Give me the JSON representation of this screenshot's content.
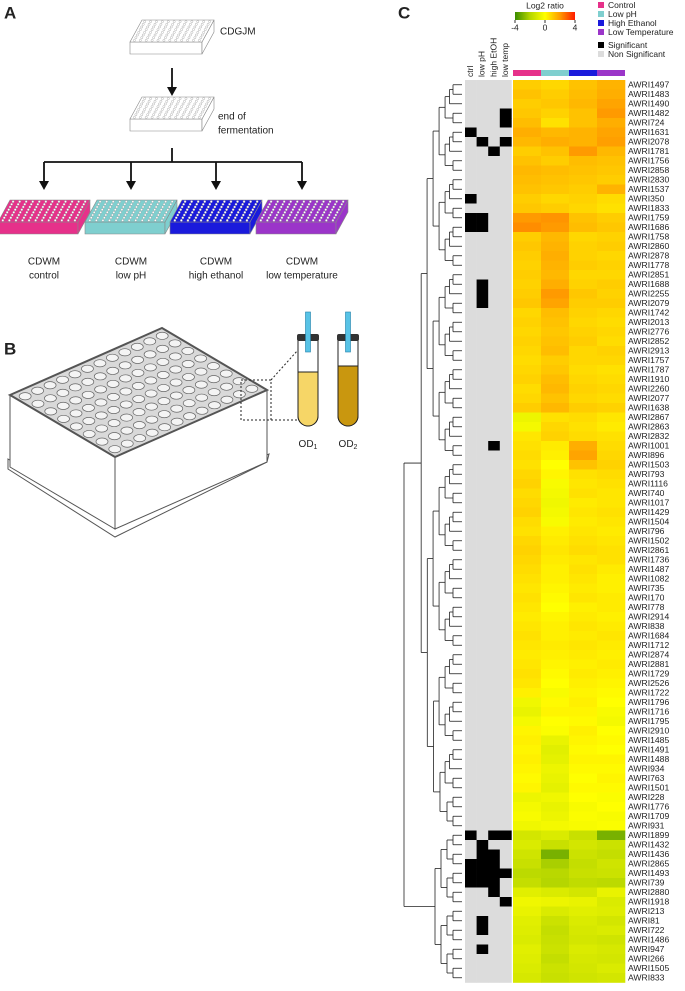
{
  "panels": {
    "a": "A",
    "b": "B",
    "c": "C"
  },
  "panel_a": {
    "start_medium": "CDGJM",
    "stage": [
      "end of",
      "fermentation"
    ],
    "conditions": [
      {
        "medium": "CDWM",
        "name": "control"
      },
      {
        "medium": "CDWM",
        "name": "low pH"
      },
      {
        "medium": "CDWM",
        "name": "high ethanol"
      },
      {
        "medium": "CDWM",
        "name": "low temperature"
      }
    ]
  },
  "panel_b": {
    "od_labels": [
      {
        "base": "OD",
        "sub": "1"
      },
      {
        "base": "OD",
        "sub": "2"
      }
    ]
  },
  "chart_data": {
    "type": "heatmap",
    "colorbar_title": "Log2 ratio",
    "colorbar_range": [
      -4,
      4
    ],
    "colorbar_ticks": [
      -4,
      0,
      4
    ],
    "colormap": [
      "#3a8c00",
      "#b5d600",
      "#ffff00",
      "#ff9a00",
      "#ff1a00"
    ],
    "treatments": [
      {
        "name": "Control",
        "color": "#e6318a"
      },
      {
        "name": "Low pH",
        "color": "#7fcfcf"
      },
      {
        "name": "High Ethanol",
        "color": "#1a1adc"
      },
      {
        "name": "Low Temperature",
        "color": "#9b35c9"
      }
    ],
    "significance_legend": [
      {
        "name": "Significant",
        "color": "#000000"
      },
      {
        "name": "Non Significant",
        "color": "#dcdcdc"
      }
    ],
    "significance_columns": [
      "ctrl",
      "low pH",
      "high EtOH",
      "low temp"
    ],
    "rows": [
      "AWRI1497",
      "AWRI1483",
      "AWRI1490",
      "AWRI1482",
      "AWRI724",
      "AWRI1631",
      "AWRI2078",
      "AWRI1781",
      "AWRI1756",
      "AWRI2858",
      "AWRI2830",
      "AWRI1537",
      "AWRI350",
      "AWRI1833",
      "AWRI1759",
      "AWRI1686",
      "AWRI1758",
      "AWRI2860",
      "AWRI2878",
      "AWRI1778",
      "AWRI2851",
      "AWRI1688",
      "AWRI2255",
      "AWRI2079",
      "AWRI1742",
      "AWRI2013",
      "AWRI2776",
      "AWRI2852",
      "AWRI2913",
      "AWRI1757",
      "AWRI1787",
      "AWRI1910",
      "AWRI2260",
      "AWRI2077",
      "AWRI1638",
      "AWRI2867",
      "AWRI2863",
      "AWRI2832",
      "AWRI1001",
      "AWRI896",
      "AWRI1503",
      "AWRI793",
      "AWRI1116",
      "AWRI740",
      "AWRI1017",
      "AWRI1429",
      "AWRI1504",
      "AWRI796",
      "AWRI1502",
      "AWRI2861",
      "AWRI1736",
      "AWRI1487",
      "AWRI1082",
      "AWRI735",
      "AWRI170",
      "AWRI778",
      "AWRI2914",
      "AWRI838",
      "AWRI1684",
      "AWRI1712",
      "AWRI2874",
      "AWRI2881",
      "AWRI1729",
      "AWRI2526",
      "AWRI1722",
      "AWRI1796",
      "AWRI1716",
      "AWRI1795",
      "AWRI2910",
      "AWRI1485",
      "AWRI1491",
      "AWRI1488",
      "AWRI934",
      "AWRI763",
      "AWRI1501",
      "AWRI228",
      "AWRI1776",
      "AWRI1709",
      "AWRI931",
      "AWRI1899",
      "AWRI1432",
      "AWRI1436",
      "AWRI2865",
      "AWRI1493",
      "AWRI739",
      "AWRI2880",
      "AWRI1918",
      "AWRI213",
      "AWRI81",
      "AWRI722",
      "AWRI1486",
      "AWRI947",
      "AWRI266",
      "AWRI1505",
      "AWRI833"
    ],
    "values": [
      [
        1.0,
        0.8,
        1.2,
        1.5
      ],
      [
        1.2,
        1.0,
        1.3,
        1.6
      ],
      [
        1.0,
        1.1,
        1.4,
        1.8
      ],
      [
        1.1,
        0.9,
        1.2,
        2.0
      ],
      [
        1.3,
        0.6,
        1.2,
        1.6
      ],
      [
        1.6,
        1.4,
        1.5,
        1.8
      ],
      [
        1.4,
        1.6,
        1.5,
        1.9
      ],
      [
        1.0,
        1.2,
        2.0,
        1.4
      ],
      [
        1.2,
        1.0,
        1.3,
        1.2
      ],
      [
        1.4,
        1.3,
        1.2,
        1.1
      ],
      [
        1.3,
        1.2,
        1.1,
        1.0
      ],
      [
        1.2,
        1.1,
        1.0,
        1.5
      ],
      [
        1.0,
        0.8,
        0.9,
        0.7
      ],
      [
        1.1,
        1.0,
        0.8,
        0.6
      ],
      [
        2.0,
        2.1,
        1.2,
        1.0
      ],
      [
        2.2,
        2.0,
        1.3,
        1.1
      ],
      [
        1.0,
        1.4,
        0.8,
        0.9
      ],
      [
        1.1,
        1.5,
        0.9,
        1.0
      ],
      [
        1.0,
        1.6,
        0.9,
        0.8
      ],
      [
        0.9,
        1.5,
        1.0,
        0.9
      ],
      [
        1.0,
        1.4,
        0.8,
        0.8
      ],
      [
        0.9,
        1.6,
        0.9,
        1.0
      ],
      [
        1.0,
        2.0,
        1.1,
        0.9
      ],
      [
        1.1,
        1.8,
        1.0,
        1.0
      ],
      [
        0.8,
        1.3,
        0.9,
        0.8
      ],
      [
        0.9,
        1.2,
        0.8,
        0.7
      ],
      [
        0.8,
        1.1,
        0.9,
        0.8
      ],
      [
        0.9,
        1.2,
        1.0,
        0.7
      ],
      [
        0.8,
        1.3,
        0.8,
        0.9
      ],
      [
        0.7,
        1.0,
        0.8,
        0.8
      ],
      [
        0.8,
        1.1,
        0.7,
        0.6
      ],
      [
        0.9,
        1.3,
        0.8,
        0.7
      ],
      [
        0.7,
        1.4,
        0.9,
        0.8
      ],
      [
        0.8,
        1.2,
        0.8,
        0.7
      ],
      [
        1.0,
        1.4,
        1.0,
        0.9
      ],
      [
        -0.5,
        0.6,
        0.7,
        0.5
      ],
      [
        -0.3,
        0.8,
        0.6,
        0.4
      ],
      [
        0.5,
        0.9,
        0.7,
        0.6
      ],
      [
        0.6,
        0.4,
        1.6,
        0.7
      ],
      [
        0.7,
        0.3,
        1.8,
        0.8
      ],
      [
        0.6,
        0.0,
        1.2,
        0.9
      ],
      [
        0.8,
        0.2,
        0.6,
        0.7
      ],
      [
        0.9,
        -0.2,
        0.5,
        0.6
      ],
      [
        0.7,
        -0.3,
        0.6,
        0.5
      ],
      [
        0.8,
        -0.4,
        0.4,
        0.5
      ],
      [
        0.9,
        -0.3,
        0.5,
        0.6
      ],
      [
        0.7,
        -0.2,
        0.4,
        0.5
      ],
      [
        0.6,
        0.3,
        0.5,
        0.4
      ],
      [
        0.8,
        0.4,
        0.6,
        0.5
      ],
      [
        0.9,
        0.5,
        0.7,
        0.6
      ],
      [
        0.8,
        0.4,
        0.5,
        0.6
      ],
      [
        0.7,
        0.3,
        0.6,
        0.4
      ],
      [
        0.6,
        0.3,
        0.5,
        0.3
      ],
      [
        0.5,
        0.2,
        0.4,
        0.3
      ],
      [
        0.6,
        0.1,
        0.5,
        0.4
      ],
      [
        0.5,
        0.0,
        0.3,
        0.4
      ],
      [
        0.4,
        0.2,
        0.4,
        0.3
      ],
      [
        0.5,
        0.3,
        0.5,
        0.4
      ],
      [
        0.6,
        0.3,
        0.4,
        0.5
      ],
      [
        0.5,
        0.4,
        0.5,
        0.4
      ],
      [
        0.4,
        0.3,
        0.4,
        0.3
      ],
      [
        0.5,
        0.2,
        0.3,
        0.4
      ],
      [
        0.6,
        0.1,
        0.4,
        0.3
      ],
      [
        0.5,
        0.0,
        0.3,
        0.2
      ],
      [
        0.3,
        -0.2,
        0.2,
        0.1
      ],
      [
        -0.4,
        0.1,
        0.3,
        0.0
      ],
      [
        -0.6,
        0.2,
        0.2,
        -0.2
      ],
      [
        -0.3,
        0.0,
        0.1,
        -0.3
      ],
      [
        0.2,
        -0.1,
        0.3,
        0.0
      ],
      [
        0.3,
        -0.6,
        0.2,
        0.1
      ],
      [
        0.2,
        -0.8,
        0.1,
        0.0
      ],
      [
        0.3,
        -0.7,
        0.2,
        0.2
      ],
      [
        0.2,
        -0.5,
        0.1,
        0.1
      ],
      [
        0.1,
        -0.6,
        0.0,
        0.2
      ],
      [
        0.2,
        -0.7,
        0.1,
        0.1
      ],
      [
        -0.5,
        -0.4,
        0.0,
        -0.1
      ],
      [
        -0.3,
        -0.6,
        -0.2,
        0.0
      ],
      [
        -0.2,
        -0.5,
        -0.1,
        -0.2
      ],
      [
        -0.4,
        -0.3,
        -0.2,
        -0.1
      ],
      [
        -1.2,
        -1.0,
        -1.5,
        -3.0
      ],
      [
        -1.0,
        -1.5,
        -1.2,
        -1.4
      ],
      [
        -1.3,
        -3.0,
        -1.4,
        -1.6
      ],
      [
        -1.5,
        -2.2,
        -1.6,
        -1.3
      ],
      [
        -1.8,
        -1.9,
        -1.5,
        -1.4
      ],
      [
        -1.6,
        -2.0,
        -1.7,
        -1.8
      ],
      [
        -0.8,
        -1.0,
        -1.2,
        -0.6
      ],
      [
        -0.4,
        -0.5,
        -0.6,
        -1.0
      ],
      [
        -0.6,
        -1.0,
        -0.8,
        -0.9
      ],
      [
        -0.8,
        -1.4,
        -1.0,
        -1.2
      ],
      [
        -0.9,
        -1.6,
        -1.1,
        -1.0
      ],
      [
        -1.0,
        -1.5,
        -1.2,
        -1.3
      ],
      [
        -0.8,
        -1.4,
        -1.0,
        -1.1
      ],
      [
        -0.9,
        -1.6,
        -1.1,
        -1.2
      ],
      [
        -1.0,
        -1.4,
        -1.2,
        -1.0
      ],
      [
        -1.1,
        -1.5,
        -1.3,
        -1.2
      ]
    ],
    "significant": [
      [
        0,
        0,
        0,
        0
      ],
      [
        0,
        0,
        0,
        0
      ],
      [
        0,
        0,
        0,
        0
      ],
      [
        0,
        0,
        0,
        1
      ],
      [
        0,
        0,
        0,
        1
      ],
      [
        1,
        0,
        0,
        0
      ],
      [
        0,
        1,
        0,
        1
      ],
      [
        0,
        0,
        1,
        0
      ],
      [
        0,
        0,
        0,
        0
      ],
      [
        0,
        0,
        0,
        0
      ],
      [
        0,
        0,
        0,
        0
      ],
      [
        0,
        0,
        0,
        0
      ],
      [
        1,
        0,
        0,
        0
      ],
      [
        0,
        0,
        0,
        0
      ],
      [
        1,
        1,
        0,
        0
      ],
      [
        1,
        1,
        0,
        0
      ],
      [
        0,
        0,
        0,
        0
      ],
      [
        0,
        0,
        0,
        0
      ],
      [
        0,
        0,
        0,
        0
      ],
      [
        0,
        0,
        0,
        0
      ],
      [
        0,
        0,
        0,
        0
      ],
      [
        0,
        1,
        0,
        0
      ],
      [
        0,
        1,
        0,
        0
      ],
      [
        0,
        1,
        0,
        0
      ],
      [
        0,
        0,
        0,
        0
      ],
      [
        0,
        0,
        0,
        0
      ],
      [
        0,
        0,
        0,
        0
      ],
      [
        0,
        0,
        0,
        0
      ],
      [
        0,
        0,
        0,
        0
      ],
      [
        0,
        0,
        0,
        0
      ],
      [
        0,
        0,
        0,
        0
      ],
      [
        0,
        0,
        0,
        0
      ],
      [
        0,
        0,
        0,
        0
      ],
      [
        0,
        0,
        0,
        0
      ],
      [
        0,
        0,
        0,
        0
      ],
      [
        0,
        0,
        0,
        0
      ],
      [
        0,
        0,
        0,
        0
      ],
      [
        0,
        0,
        0,
        0
      ],
      [
        0,
        0,
        1,
        0
      ],
      [
        0,
        0,
        0,
        0
      ],
      [
        0,
        0,
        0,
        0
      ],
      [
        0,
        0,
        0,
        0
      ],
      [
        0,
        0,
        0,
        0
      ],
      [
        0,
        0,
        0,
        0
      ],
      [
        0,
        0,
        0,
        0
      ],
      [
        0,
        0,
        0,
        0
      ],
      [
        0,
        0,
        0,
        0
      ],
      [
        0,
        0,
        0,
        0
      ],
      [
        0,
        0,
        0,
        0
      ],
      [
        0,
        0,
        0,
        0
      ],
      [
        0,
        0,
        0,
        0
      ],
      [
        0,
        0,
        0,
        0
      ],
      [
        0,
        0,
        0,
        0
      ],
      [
        0,
        0,
        0,
        0
      ],
      [
        0,
        0,
        0,
        0
      ],
      [
        0,
        0,
        0,
        0
      ],
      [
        0,
        0,
        0,
        0
      ],
      [
        0,
        0,
        0,
        0
      ],
      [
        0,
        0,
        0,
        0
      ],
      [
        0,
        0,
        0,
        0
      ],
      [
        0,
        0,
        0,
        0
      ],
      [
        0,
        0,
        0,
        0
      ],
      [
        0,
        0,
        0,
        0
      ],
      [
        0,
        0,
        0,
        0
      ],
      [
        0,
        0,
        0,
        0
      ],
      [
        0,
        0,
        0,
        0
      ],
      [
        0,
        0,
        0,
        0
      ],
      [
        0,
        0,
        0,
        0
      ],
      [
        0,
        0,
        0,
        0
      ],
      [
        0,
        0,
        0,
        0
      ],
      [
        0,
        0,
        0,
        0
      ],
      [
        0,
        0,
        0,
        0
      ],
      [
        0,
        0,
        0,
        0
      ],
      [
        0,
        0,
        0,
        0
      ],
      [
        0,
        0,
        0,
        0
      ],
      [
        0,
        0,
        0,
        0
      ],
      [
        0,
        0,
        0,
        0
      ],
      [
        0,
        0,
        0,
        0
      ],
      [
        0,
        0,
        0,
        0
      ],
      [
        1,
        0,
        1,
        1
      ],
      [
        0,
        1,
        0,
        0
      ],
      [
        0,
        1,
        1,
        0
      ],
      [
        1,
        1,
        1,
        0
      ],
      [
        1,
        1,
        1,
        1
      ],
      [
        1,
        1,
        1,
        0
      ],
      [
        0,
        0,
        1,
        0
      ],
      [
        0,
        0,
        0,
        1
      ],
      [
        0,
        0,
        0,
        0
      ],
      [
        0,
        1,
        0,
        0
      ],
      [
        0,
        1,
        0,
        0
      ],
      [
        0,
        0,
        0,
        0
      ],
      [
        0,
        1,
        0,
        0
      ],
      [
        0,
        0,
        0,
        0
      ],
      [
        0,
        0,
        0,
        0
      ],
      [
        0,
        0,
        0,
        0
      ]
    ]
  }
}
